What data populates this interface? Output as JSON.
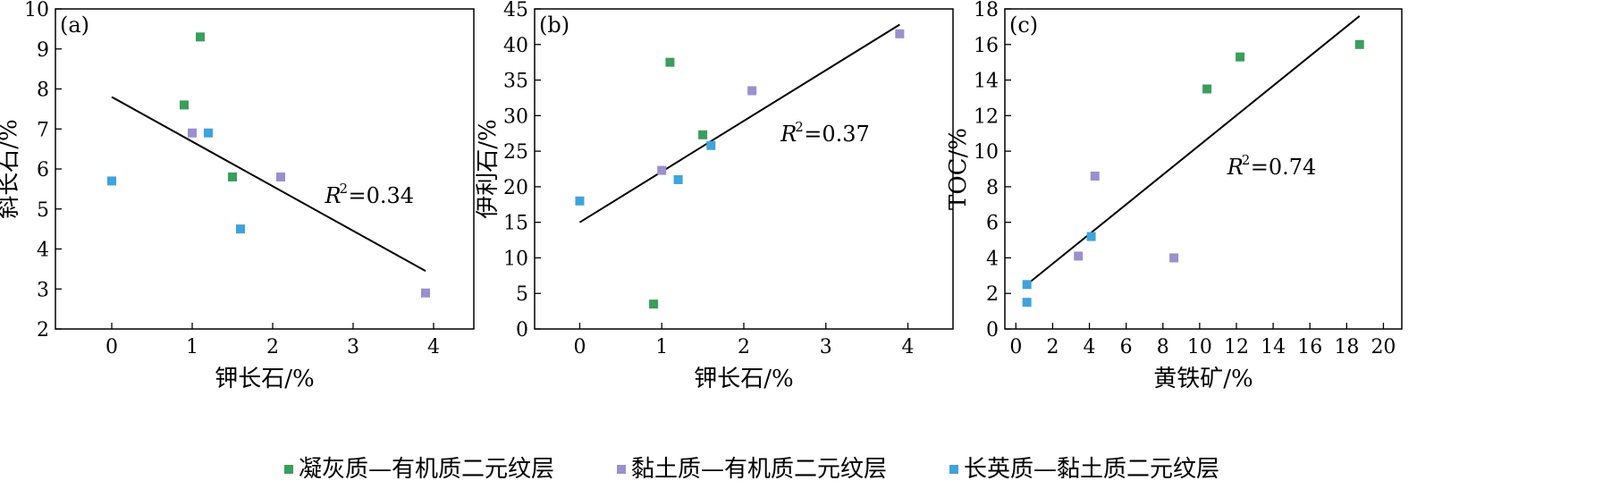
{
  "colors": {
    "green": "#3a9e5c",
    "purple": "#9b8fcd",
    "blue": "#3fa3dc",
    "axis": "#000000",
    "fit_line": "#000000"
  },
  "legend": {
    "items": [
      {
        "label": "凝灰质—有机质二元纹层",
        "color_key": "green"
      },
      {
        "label": "黏土质—有机质二元纹层",
        "color_key": "purple"
      },
      {
        "label": "长英质—黏土质二元纹层",
        "color_key": "blue"
      }
    ]
  },
  "chart_data": [
    {
      "type": "scatter",
      "panel_label": "(a)",
      "xlabel": "钾长石/%",
      "ylabel": "斜长石/%",
      "xlim": [
        -0.7,
        4.5
      ],
      "ylim": [
        2,
        10
      ],
      "xticks": [
        0,
        1,
        2,
        3,
        4
      ],
      "yticks": [
        2,
        3,
        4,
        5,
        6,
        7,
        8,
        9,
        10
      ],
      "r2_prefix": "R",
      "r2_sup": "2",
      "r2_value": "=0.34",
      "r2_pos": [
        2.65,
        5.15
      ],
      "fit": {
        "x": [
          0,
          3.9
        ],
        "y": [
          7.8,
          3.45
        ]
      },
      "series": [
        {
          "color_key": "green",
          "points": [
            [
              1.1,
              9.3
            ],
            [
              0.9,
              7.6
            ],
            [
              1.5,
              5.8
            ]
          ]
        },
        {
          "color_key": "purple",
          "points": [
            [
              1.0,
              6.9
            ],
            [
              2.1,
              5.8
            ],
            [
              3.9,
              2.9
            ]
          ]
        },
        {
          "color_key": "blue",
          "points": [
            [
              0.0,
              5.7
            ],
            [
              1.2,
              6.9
            ],
            [
              1.6,
              4.5
            ]
          ]
        }
      ]
    },
    {
      "type": "scatter",
      "panel_label": "(b)",
      "xlabel": "钾长石/%",
      "ylabel": "伊利石/%",
      "xlim": [
        -0.55,
        4.55
      ],
      "ylim": [
        0,
        45
      ],
      "xticks": [
        0,
        1,
        2,
        3,
        4
      ],
      "yticks": [
        0,
        5,
        10,
        15,
        20,
        25,
        30,
        35,
        40,
        45
      ],
      "r2_prefix": "R",
      "r2_sup": "2",
      "r2_value": "=0.37",
      "r2_pos": [
        2.45,
        26.4
      ],
      "fit": {
        "x": [
          0,
          3.9
        ],
        "y": [
          15,
          42.8
        ]
      },
      "series": [
        {
          "color_key": "green",
          "points": [
            [
              1.1,
              37.5
            ],
            [
              1.5,
              27.3
            ],
            [
              0.9,
              3.5
            ]
          ]
        },
        {
          "color_key": "purple",
          "points": [
            [
              3.9,
              41.5
            ],
            [
              2.1,
              33.5
            ],
            [
              1.0,
              22.3
            ]
          ]
        },
        {
          "color_key": "blue",
          "points": [
            [
              0.0,
              18.0
            ],
            [
              1.2,
              21.0
            ],
            [
              1.6,
              25.8
            ]
          ]
        }
      ]
    },
    {
      "type": "scatter",
      "panel_label": "(c)",
      "xlabel": "黄铁矿/%",
      "ylabel": "TOC/%",
      "xlim": [
        -0.6,
        21
      ],
      "ylim": [
        0,
        18
      ],
      "xticks": [
        0,
        2,
        4,
        6,
        8,
        10,
        12,
        14,
        16,
        18,
        20
      ],
      "yticks": [
        0,
        2,
        4,
        6,
        8,
        10,
        12,
        14,
        16,
        18
      ],
      "r2_prefix": "R",
      "r2_sup": "2",
      "r2_value": "=0.74",
      "r2_pos": [
        11.5,
        8.7
      ],
      "fit": {
        "x": [
          0.6,
          18.7
        ],
        "y": [
          2.5,
          17.6
        ]
      },
      "series": [
        {
          "color_key": "green",
          "points": [
            [
              10.4,
              13.5
            ],
            [
              12.2,
              15.3
            ],
            [
              18.7,
              16.0
            ]
          ]
        },
        {
          "color_key": "purple",
          "points": [
            [
              4.3,
              8.6
            ],
            [
              3.4,
              4.1
            ],
            [
              8.6,
              4.0
            ]
          ]
        },
        {
          "color_key": "blue",
          "points": [
            [
              4.1,
              5.2
            ],
            [
              0.6,
              2.5
            ],
            [
              0.6,
              1.5
            ]
          ]
        }
      ]
    }
  ]
}
